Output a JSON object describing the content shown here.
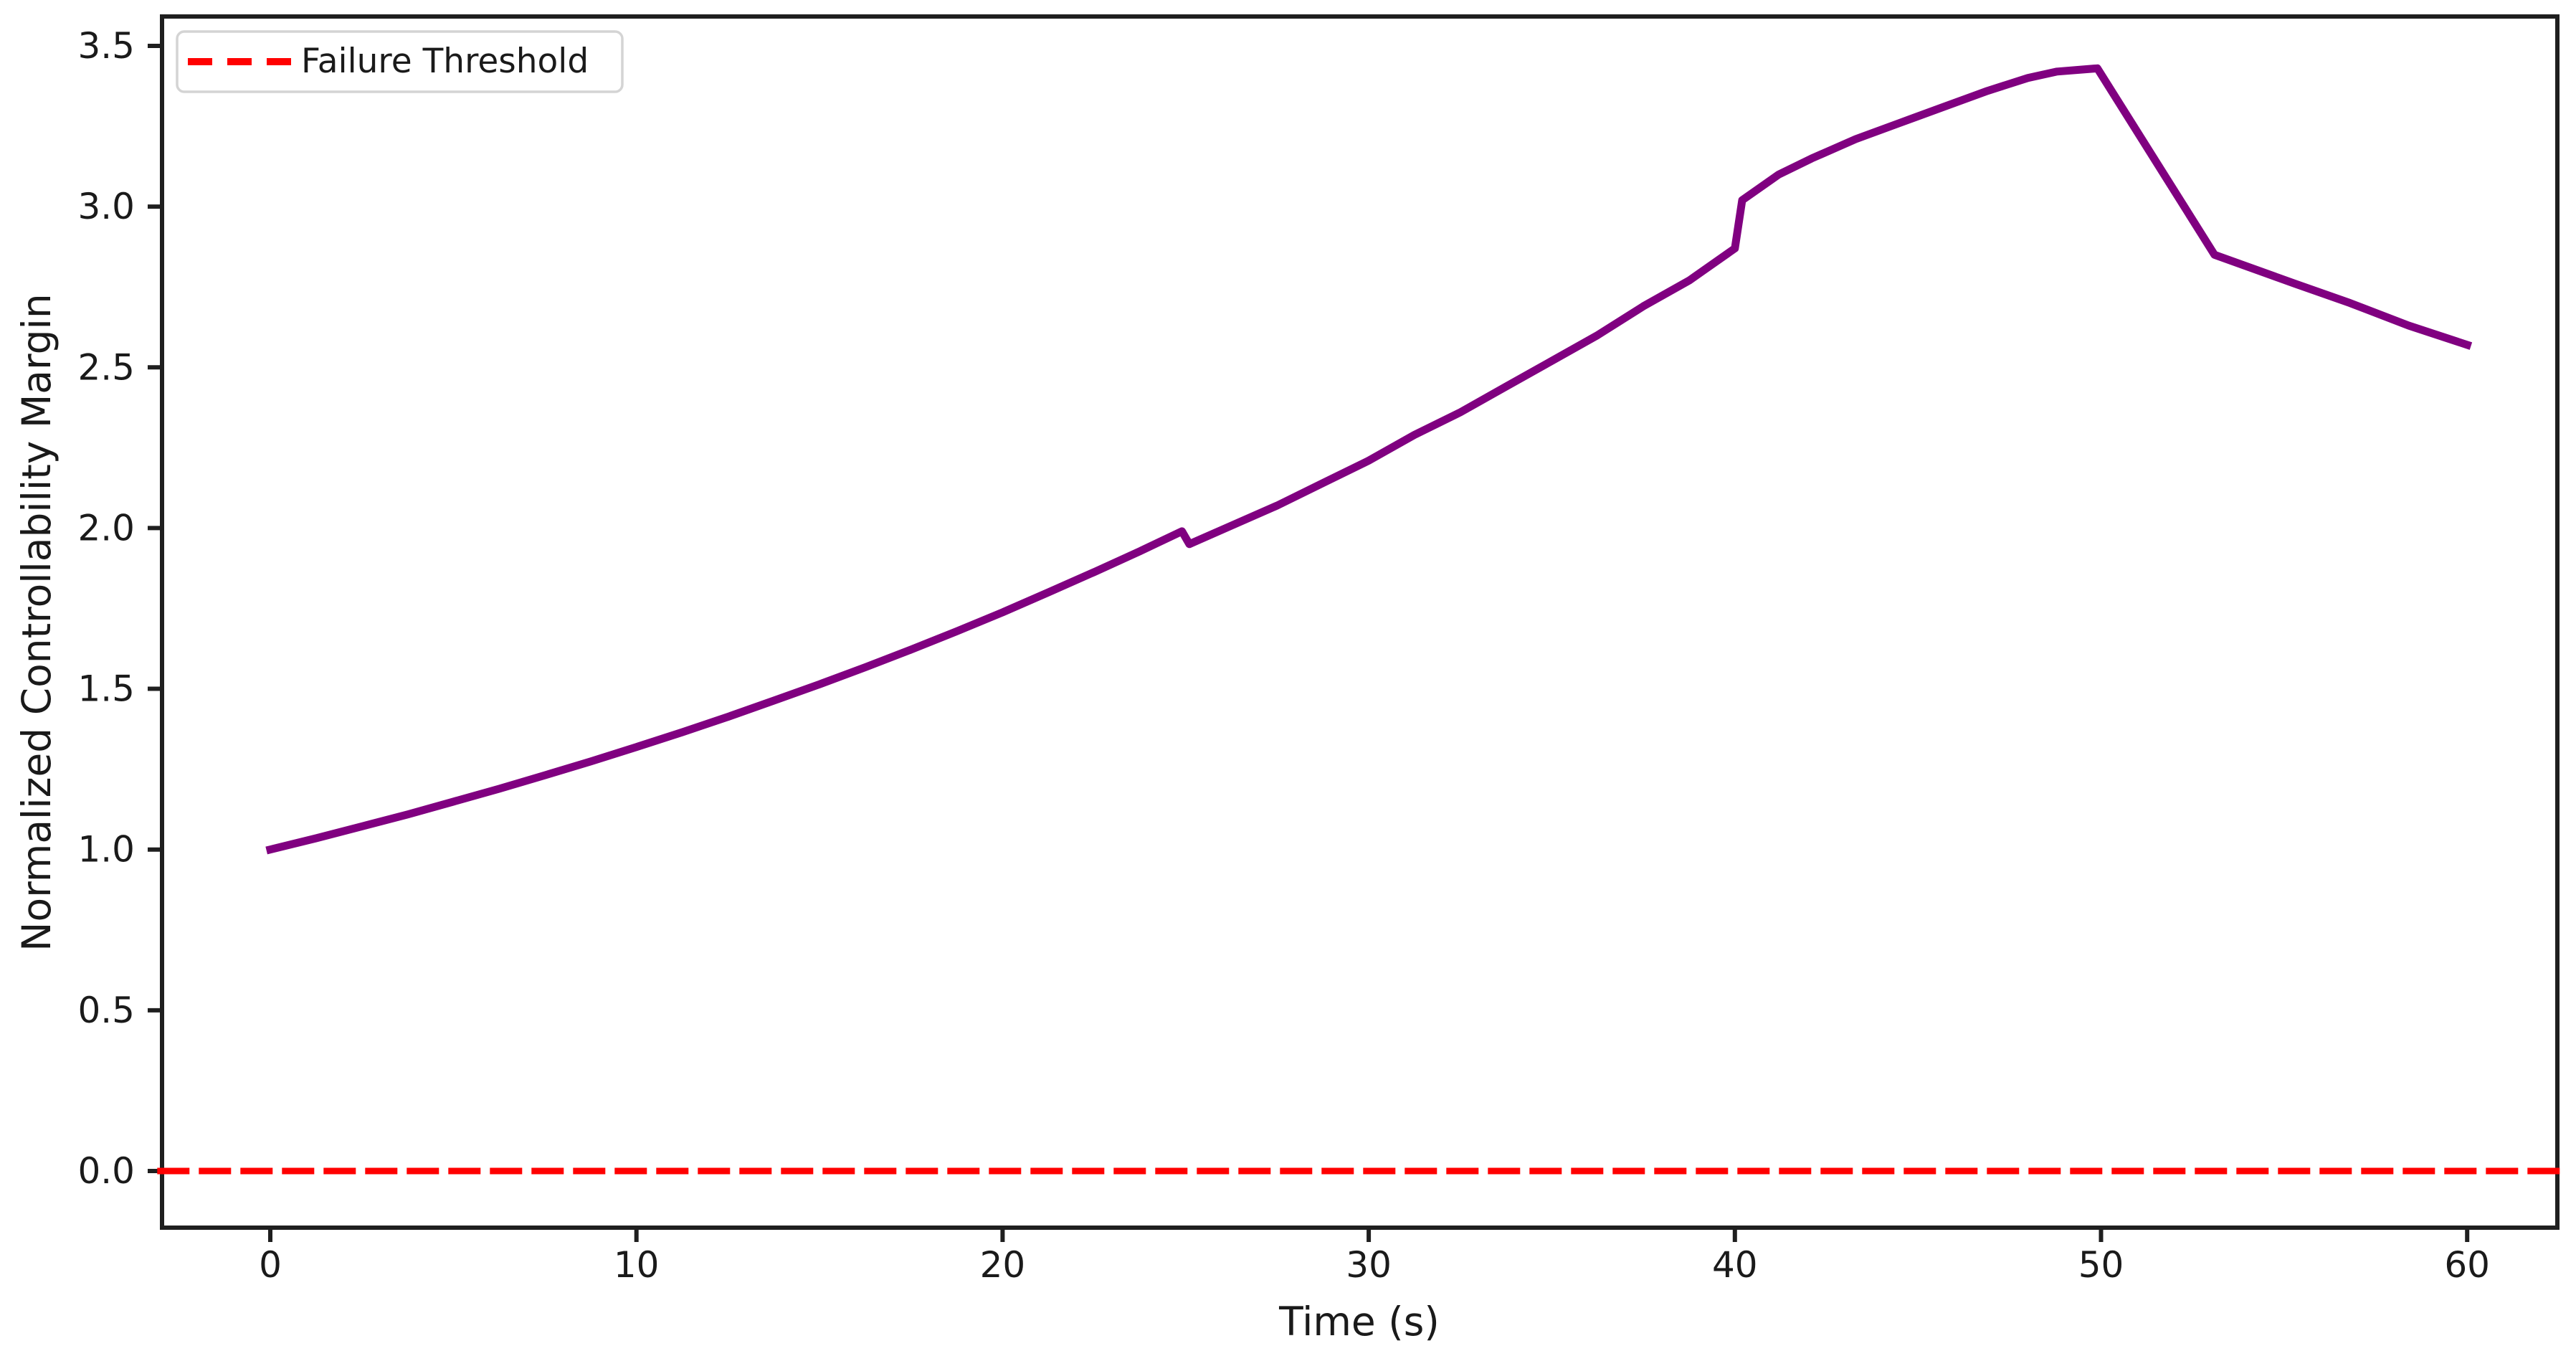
{
  "figure": {
    "background_color": "#ffffff",
    "frame_color": "#1f1f1f"
  },
  "chart_data": {
    "type": "line",
    "title": "",
    "xlabel": "Time (s)",
    "ylabel": "Normalized Controllability Margin",
    "xlim": [
      -3.0,
      62.5
    ],
    "ylim": [
      -0.18,
      3.6
    ],
    "grid": false,
    "xticks": [
      0,
      10,
      20,
      30,
      40,
      50,
      60
    ],
    "xtick_labels": [
      "0",
      "10",
      "20",
      "30",
      "40",
      "50",
      "60"
    ],
    "yticks": [
      0.0,
      0.5,
      1.0,
      1.5,
      2.0,
      2.5,
      3.0,
      3.5
    ],
    "ytick_labels": [
      "0.0",
      "0.5",
      "1.0",
      "1.5",
      "2.0",
      "2.5",
      "3.0",
      "3.5"
    ],
    "legend": {
      "position": "upper left",
      "entries": [
        {
          "label": "Failure Threshold",
          "color": "#ff0000",
          "dashed": true
        }
      ]
    },
    "series": [
      {
        "name": "controllability-margin",
        "color": "#800080",
        "line_style": "solid",
        "points": [
          [
            0,
            1.0
          ],
          [
            1.25,
            1.035
          ],
          [
            2.5,
            1.072
          ],
          [
            3.75,
            1.109
          ],
          [
            5,
            1.149
          ],
          [
            6.25,
            1.189
          ],
          [
            7.5,
            1.231
          ],
          [
            8.75,
            1.274
          ],
          [
            10,
            1.319
          ],
          [
            11.25,
            1.365
          ],
          [
            12.5,
            1.413
          ],
          [
            13.75,
            1.463
          ],
          [
            15,
            1.514
          ],
          [
            16.25,
            1.567
          ],
          [
            17.5,
            1.622
          ],
          [
            18.75,
            1.679
          ],
          [
            20,
            1.738
          ],
          [
            21.25,
            1.8
          ],
          [
            22.5,
            1.863
          ],
          [
            23.75,
            1.928
          ],
          [
            24.9,
            1.99
          ],
          [
            25.1,
            1.95
          ],
          [
            26.1,
            2.0
          ],
          [
            27.5,
            2.07
          ],
          [
            28.75,
            2.14
          ],
          [
            30,
            2.21
          ],
          [
            31.25,
            2.29
          ],
          [
            32.5,
            2.36
          ],
          [
            33.75,
            2.44
          ],
          [
            35,
            2.52
          ],
          [
            36.25,
            2.6
          ],
          [
            37.5,
            2.69
          ],
          [
            38.75,
            2.77
          ],
          [
            40,
            2.87
          ],
          [
            40.2,
            3.02
          ],
          [
            41.2,
            3.1
          ],
          [
            42.1,
            3.15
          ],
          [
            43.3,
            3.21
          ],
          [
            44.5,
            3.26
          ],
          [
            45.7,
            3.31
          ],
          [
            46.9,
            3.36
          ],
          [
            48,
            3.4
          ],
          [
            48.8,
            3.42
          ],
          [
            49.9,
            3.43
          ],
          [
            53.1,
            2.85
          ],
          [
            55.3,
            2.76
          ],
          [
            56.8,
            2.7
          ],
          [
            58.4,
            2.63
          ],
          [
            60,
            2.57
          ]
        ]
      },
      {
        "name": "failure-threshold",
        "color": "#ff0000",
        "line_style": "dashed",
        "points": [
          [
            -3.0,
            0.0
          ],
          [
            62.5,
            0.0
          ]
        ]
      }
    ]
  }
}
